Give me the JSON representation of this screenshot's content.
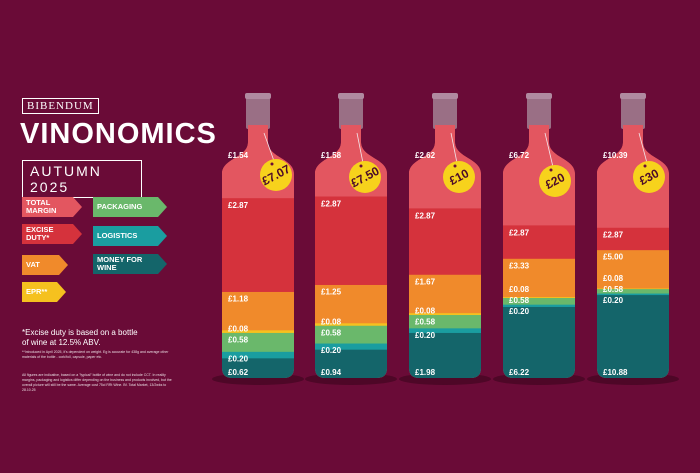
{
  "brand": "BIBENDUM",
  "title": "VINONOMICS",
  "subtitle": "AUTUMN 2025",
  "footnotes": {
    "excise": "*Excise duty is based on a bottle of wine at 12.5% ABV.",
    "epr": "**Introduced in April 2025, it's dependent on weight. Eg is accurate for 438g and average other materials of the bottle - cork/foil, capsule, paper etc.",
    "disclaimer": "All figures are indicative, based on a \"typical\" bottle of wine and do not include CCT. In reality margins, packaging and logistics differ depending on the business and products involved, but the overall picture will still be the same. Average cost 75cl RRt Wine. Bf. Total Market, 13/2wks to 28.10.25"
  },
  "legend": [
    {
      "label": "TOTAL MARGIN",
      "color": "#e35660"
    },
    {
      "label": "EXCISE DUTY*",
      "color": "#d5323c"
    },
    {
      "label": "VAT",
      "color": "#f08a2b"
    },
    {
      "label": "EPR**",
      "color": "#f5c11f"
    },
    {
      "label": "PACKAGING",
      "color": "#6ab86b"
    },
    {
      "label": "LOGISTICS",
      "color": "#1a9da0"
    },
    {
      "label": "MONEY FOR WINE",
      "color": "#14656a"
    }
  ],
  "colors": {
    "background": "#6a0b37",
    "capsule": "#9a6f85",
    "tag": "#f7d21c"
  },
  "chart_data": {
    "type": "bar",
    "stacked": true,
    "categories": [
      "£7.07",
      "£7.50",
      "£10",
      "£20",
      "£30"
    ],
    "series": [
      {
        "name": "MONEY FOR WINE",
        "values": [
          0.62,
          0.94,
          1.98,
          6.22,
          10.88
        ],
        "labels": [
          "£0.62",
          "£0.94",
          "£1.98",
          "£6.22",
          "£10.88"
        ]
      },
      {
        "name": "LOGISTICS",
        "values": [
          0.2,
          0.2,
          0.2,
          0.2,
          0.2
        ],
        "labels": [
          "£0.20",
          "£0.20",
          "£0.20",
          "£0.20",
          "£0.20"
        ]
      },
      {
        "name": "PACKAGING",
        "values": [
          0.58,
          0.58,
          0.58,
          0.58,
          0.58
        ],
        "labels": [
          "£0.58",
          "£0.58",
          "£0.58",
          "£0.58",
          "£0.58"
        ]
      },
      {
        "name": "EPR**",
        "values": [
          0.08,
          0.08,
          0.08,
          0.08,
          0.08
        ],
        "labels": [
          "£0.08",
          "£0.08",
          "£0.08",
          "£0.08",
          "£0.08"
        ]
      },
      {
        "name": "VAT",
        "values": [
          1.18,
          1.25,
          1.67,
          3.33,
          5.0
        ],
        "labels": [
          "£1.18",
          "£1.25",
          "£1.67",
          "£3.33",
          "£5.00"
        ]
      },
      {
        "name": "EXCISE DUTY*",
        "values": [
          2.87,
          2.87,
          2.87,
          2.87,
          2.87
        ],
        "labels": [
          "£2.87",
          "£2.87",
          "£2.87",
          "£2.87",
          "£2.87"
        ]
      },
      {
        "name": "TOTAL MARGIN",
        "values": [
          1.54,
          1.58,
          2.62,
          6.72,
          10.39
        ],
        "labels": [
          "£1.54",
          "£1.58",
          "£2.62",
          "£6.72",
          "£10.39"
        ]
      }
    ]
  }
}
